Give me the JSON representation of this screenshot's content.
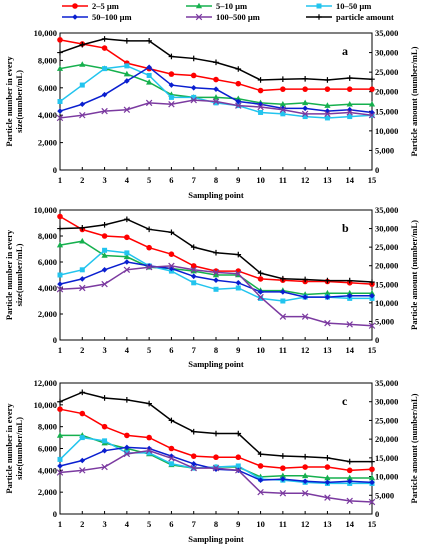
{
  "legend": {
    "items": [
      {
        "label": "2–5 µm",
        "color": "#ff0000",
        "marker": "circle"
      },
      {
        "label": "5–10 µm",
        "color": "#16b04e",
        "marker": "triangle"
      },
      {
        "label": "10–50 µm",
        "color": "#22c4ee",
        "marker": "square"
      },
      {
        "label": "50–100 µm",
        "color": "#0a1fd0",
        "marker": "diamond"
      },
      {
        "label": "100–500 µm",
        "color": "#7b3aa0",
        "marker": "x"
      },
      {
        "label": "particle amount",
        "color": "#000000",
        "marker": "plus"
      }
    ]
  },
  "chart_data": [
    {
      "type": "line",
      "panel": "a",
      "xlabel": "Sampling point",
      "ylabel_left": "Particle number in every size(number/mL)",
      "ylabel_right": "Particle amount (number/mL)",
      "x": [
        1,
        2,
        3,
        4,
        5,
        6,
        7,
        8,
        9,
        10,
        11,
        12,
        13,
        14,
        15
      ],
      "ylim_left": [
        0,
        10000
      ],
      "yticks_left": [
        "0",
        "2,000",
        "4,000",
        "6,000",
        "8,000",
        "10,000"
      ],
      "ylim_right": [
        0,
        35000
      ],
      "yticks_right": [
        "0",
        "5,000",
        "10,000",
        "15,000",
        "20,000",
        "25,000",
        "30,000",
        "35,000"
      ],
      "series": [
        {
          "name": "2–5 µm",
          "axis": "left",
          "values": [
            9500,
            9200,
            8900,
            7800,
            7400,
            7000,
            6900,
            6600,
            6300,
            5800,
            5900,
            5900,
            5900,
            5900,
            5900
          ]
        },
        {
          "name": "5–10 µm",
          "axis": "left",
          "values": [
            7400,
            7700,
            7400,
            7000,
            6400,
            5500,
            5300,
            5300,
            5200,
            4900,
            4800,
            4900,
            4700,
            4800,
            4800
          ]
        },
        {
          "name": "10–50 µm",
          "axis": "left",
          "values": [
            5000,
            6200,
            7400,
            7600,
            6900,
            5300,
            5300,
            4900,
            4700,
            4200,
            4100,
            3900,
            3800,
            3900,
            4000
          ]
        },
        {
          "name": "50–100 µm",
          "axis": "left",
          "values": [
            4300,
            4800,
            5500,
            6500,
            7500,
            6200,
            6000,
            5900,
            5000,
            4800,
            4500,
            4500,
            4300,
            4400,
            4200
          ]
        },
        {
          "name": "100–500 µm",
          "axis": "left",
          "values": [
            3800,
            4000,
            4300,
            4400,
            4900,
            4800,
            5100,
            5000,
            4700,
            4600,
            4400,
            4100,
            4100,
            4200,
            4000
          ]
        },
        {
          "name": "particle amount",
          "axis": "right",
          "values": [
            30000,
            32000,
            33500,
            33000,
            33000,
            29000,
            28500,
            27500,
            25800,
            23000,
            23200,
            23300,
            23000,
            23500,
            23200
          ]
        }
      ]
    },
    {
      "type": "line",
      "panel": "b",
      "xlabel": "Sampling point",
      "ylabel_left": "Particle number in every size(number/mL)",
      "ylabel_right": "Particle amount (number/mL)",
      "x": [
        1,
        2,
        3,
        4,
        5,
        6,
        7,
        8,
        9,
        10,
        11,
        12,
        13,
        14,
        15
      ],
      "ylim_left": [
        0,
        10000
      ],
      "yticks_left": [
        "0",
        "2,000",
        "4,000",
        "6,000",
        "8,000",
        "10,000"
      ],
      "ylim_right": [
        0,
        35000
      ],
      "yticks_right": [
        "0",
        "5,000",
        "10,000",
        "15,000",
        "20,000",
        "25,000",
        "30,000",
        "35,000"
      ],
      "series": [
        {
          "name": "2–5 µm",
          "axis": "left",
          "values": [
            9500,
            8500,
            8000,
            7900,
            7100,
            6600,
            5700,
            5300,
            5300,
            4700,
            4600,
            4500,
            4500,
            4400,
            4300
          ]
        },
        {
          "name": "5–10 µm",
          "axis": "left",
          "values": [
            7300,
            7600,
            6500,
            6400,
            5600,
            5500,
            5300,
            5000,
            5000,
            3800,
            3800,
            3500,
            3600,
            3600,
            3600
          ]
        },
        {
          "name": "10–50 µm",
          "axis": "left",
          "values": [
            5000,
            5400,
            6900,
            6700,
            5700,
            5300,
            4400,
            3900,
            4000,
            3200,
            3000,
            3300,
            3300,
            3200,
            3200
          ]
        },
        {
          "name": "50–100 µm",
          "axis": "left",
          "values": [
            4300,
            4700,
            5400,
            6000,
            5700,
            5500,
            4900,
            4600,
            4400,
            3700,
            3700,
            3300,
            3300,
            3400,
            3400
          ]
        },
        {
          "name": "100–500 µm",
          "axis": "left",
          "values": [
            3900,
            4000,
            4300,
            5400,
            5600,
            5700,
            5400,
            5200,
            5100,
            3300,
            1800,
            1800,
            1300,
            1200,
            1100
          ]
        },
        {
          "name": "particle amount",
          "axis": "right",
          "values": [
            30000,
            30200,
            31000,
            32500,
            29800,
            29000,
            25000,
            23500,
            23000,
            18000,
            16500,
            16300,
            16000,
            16000,
            15600
          ]
        }
      ]
    },
    {
      "type": "line",
      "panel": "c",
      "xlabel": "Sampling point",
      "ylabel_left": "Particle number in every size(number/mL)",
      "ylabel_right": "Particle amount (number/mL)",
      "x": [
        1,
        2,
        3,
        4,
        5,
        6,
        7,
        8,
        9,
        10,
        11,
        12,
        13,
        14,
        15
      ],
      "ylim_left": [
        0,
        12000
      ],
      "yticks_left": [
        "0",
        "2,000",
        "4,000",
        "6,000",
        "8,000",
        "10,000",
        "12,000"
      ],
      "ylim_right": [
        0,
        35000
      ],
      "yticks_right": [
        "0",
        "5,000",
        "10,000",
        "15,000",
        "20,000",
        "25,000",
        "30,000",
        "35,000"
      ],
      "series": [
        {
          "name": "2–5 µm",
          "axis": "left",
          "values": [
            9600,
            9200,
            8000,
            7200,
            7000,
            6000,
            5300,
            5200,
            5200,
            4400,
            4200,
            4300,
            4300,
            4000,
            4100
          ]
        },
        {
          "name": "5–10 µm",
          "axis": "left",
          "values": [
            7200,
            7200,
            6500,
            6000,
            5500,
            4500,
            4200,
            4300,
            4300,
            3400,
            3500,
            3500,
            3300,
            3300,
            3300
          ]
        },
        {
          "name": "10–50 µm",
          "axis": "left",
          "values": [
            5000,
            7000,
            6700,
            5600,
            5600,
            4600,
            4200,
            4300,
            4400,
            3200,
            3100,
            2900,
            2800,
            2800,
            2800
          ]
        },
        {
          "name": "50–100 µm",
          "axis": "left",
          "values": [
            4400,
            4900,
            5800,
            6100,
            6000,
            5300,
            4600,
            4100,
            4000,
            3100,
            3200,
            3000,
            2900,
            3000,
            2900
          ]
        },
        {
          "name": "100–500 µm",
          "axis": "left",
          "values": [
            3800,
            4000,
            4300,
            5500,
            5800,
            5100,
            4200,
            4200,
            4000,
            2000,
            1900,
            1900,
            1500,
            1200,
            1100
          ]
        },
        {
          "name": "particle amount",
          "axis": "right",
          "values": [
            30000,
            32500,
            31000,
            30500,
            29500,
            25000,
            22000,
            21500,
            21500,
            16000,
            15500,
            15300,
            15000,
            14000,
            14000
          ]
        }
      ]
    }
  ]
}
